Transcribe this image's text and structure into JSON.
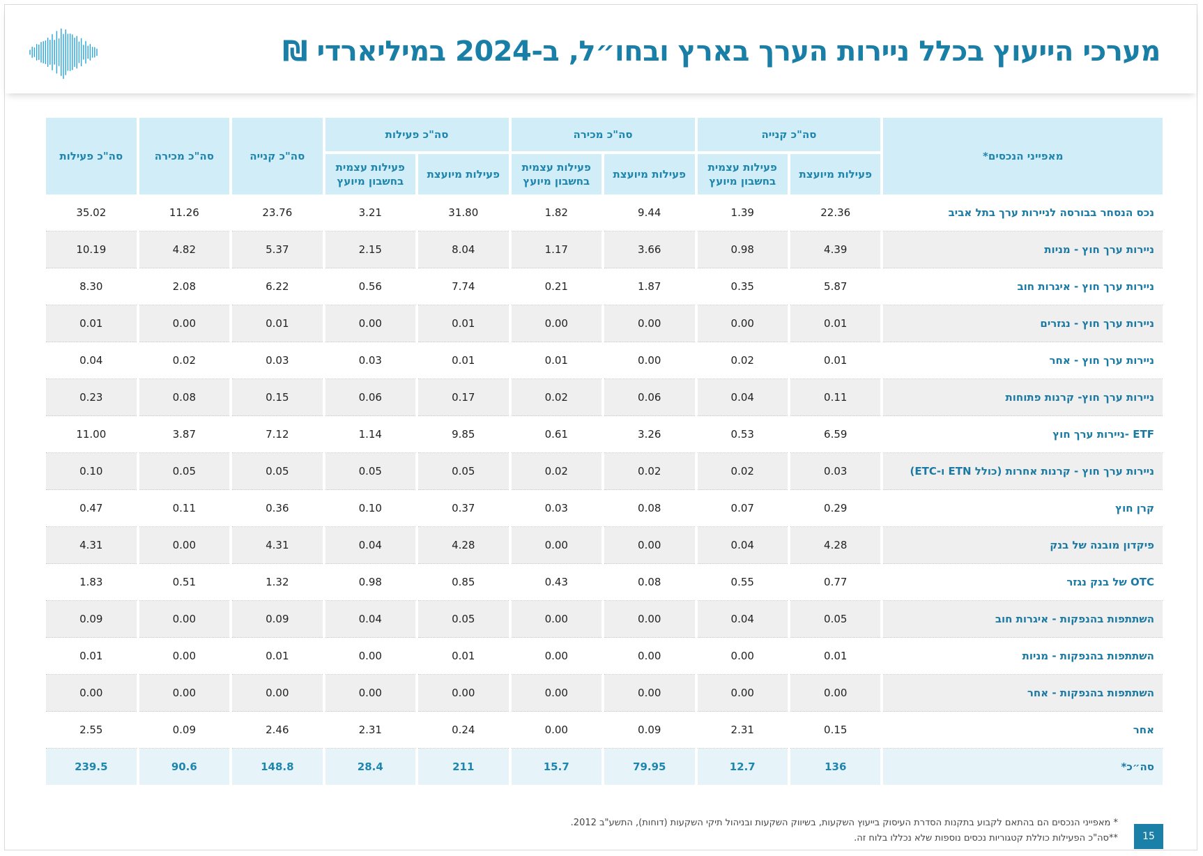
{
  "title": "מערכי הייעוץ בכלל ניירות הערך בארץ ובחו״ל, ב-2024 במיליארדי ₪",
  "colors": {
    "accent": "#1a7fa6",
    "header_bg": "#d1edf8",
    "row_alt": "#efefef",
    "total_bg": "#e6f4fa"
  },
  "icons": {
    "logo": "soundwave-logo"
  },
  "table": {
    "row_header": "מאפייני הנכסים*",
    "groups": [
      {
        "label": "סה\"כ קנייה",
        "sub": [
          "פעילות מיועצת",
          "פעילות עצמית בחשבון מיועץ"
        ]
      },
      {
        "label": "סה\"כ מכירה",
        "sub": [
          "פעילות מיועצת",
          "פעילות עצמית בחשבון מיועץ"
        ]
      },
      {
        "label": "סה\"כ פעילות",
        "sub": [
          "פעילות מיועצת",
          "פעילות עצמית בחשבון מיועץ"
        ]
      }
    ],
    "totals_headers": [
      "סה\"כ קנייה",
      "סה\"כ מכירה",
      "סה\"כ פעילות"
    ],
    "rows": [
      {
        "label": "נכס הנסחר בבורסה לניירות ערך בתל אביב",
        "values": [
          "22.36",
          "1.39",
          "9.44",
          "1.82",
          "31.80",
          "3.21",
          "23.76",
          "11.26",
          "35.02"
        ]
      },
      {
        "label": "ניירות ערך חוץ - מניות",
        "values": [
          "4.39",
          "0.98",
          "3.66",
          "1.17",
          "8.04",
          "2.15",
          "5.37",
          "4.82",
          "10.19"
        ]
      },
      {
        "label": "ניירות ערך חוץ - איגרות חוב",
        "values": [
          "5.87",
          "0.35",
          "1.87",
          "0.21",
          "7.74",
          "0.56",
          "6.22",
          "2.08",
          "8.30"
        ]
      },
      {
        "label": "ניירות ערך חוץ - נגזרים",
        "values": [
          "0.01",
          "0.00",
          "0.00",
          "0.00",
          "0.01",
          "0.00",
          "0.01",
          "0.00",
          "0.01"
        ]
      },
      {
        "label": "ניירות ערך חוץ - אחר",
        "values": [
          "0.01",
          "0.02",
          "0.00",
          "0.01",
          "0.01",
          "0.03",
          "0.03",
          "0.02",
          "0.04"
        ]
      },
      {
        "label": "ניירות ערך חוץ- קרנות פתוחות",
        "values": [
          "0.11",
          "0.04",
          "0.06",
          "0.02",
          "0.17",
          "0.06",
          "0.15",
          "0.08",
          "0.23"
        ]
      },
      {
        "label": "ETF -ניירות ערך חוץ",
        "values": [
          "6.59",
          "0.53",
          "3.26",
          "0.61",
          "9.85",
          "1.14",
          "7.12",
          "3.87",
          "11.00"
        ]
      },
      {
        "label": "ניירות ערך חוץ - קרנות אחרות (כולל ETN ו-ETC)",
        "values": [
          "0.03",
          "0.02",
          "0.02",
          "0.02",
          "0.05",
          "0.05",
          "0.05",
          "0.05",
          "0.10"
        ]
      },
      {
        "label": "קרן חוץ",
        "values": [
          "0.29",
          "0.07",
          "0.08",
          "0.03",
          "0.37",
          "0.10",
          "0.36",
          "0.11",
          "0.47"
        ]
      },
      {
        "label": "פיקדון מובנה של בנק",
        "values": [
          "4.28",
          "0.04",
          "0.00",
          "0.00",
          "4.28",
          "0.04",
          "4.31",
          "0.00",
          "4.31"
        ]
      },
      {
        "label": "OTC של בנק נגזר",
        "values": [
          "0.77",
          "0.55",
          "0.08",
          "0.43",
          "0.85",
          "0.98",
          "1.32",
          "0.51",
          "1.83"
        ]
      },
      {
        "label": "השתתפות בהנפקות - איגרות חוב",
        "values": [
          "0.05",
          "0.04",
          "0.00",
          "0.00",
          "0.05",
          "0.04",
          "0.09",
          "0.00",
          "0.09"
        ]
      },
      {
        "label": "השתתפות בהנפקות - מניות",
        "values": [
          "0.01",
          "0.00",
          "0.00",
          "0.00",
          "0.01",
          "0.00",
          "0.01",
          "0.00",
          "0.01"
        ]
      },
      {
        "label": "השתתפות בהנפקות - אחר",
        "values": [
          "0.00",
          "0.00",
          "0.00",
          "0.00",
          "0.00",
          "0.00",
          "0.00",
          "0.00",
          "0.00"
        ]
      },
      {
        "label": "אחר",
        "values": [
          "0.15",
          "2.31",
          "0.09",
          "0.00",
          "0.24",
          "2.31",
          "2.46",
          "0.09",
          "2.55"
        ]
      }
    ],
    "total": {
      "label": "סה״כ*",
      "values": [
        "136",
        "12.7",
        "79.95",
        "15.7",
        "211",
        "28.4",
        "148.8",
        "90.6",
        "239.5"
      ]
    }
  },
  "footnotes": [
    "* מאפייני הנכסים הם בהתאם לקבוע בתקנות הסדרת העיסוק בייעוץ השקעות, בשיווק השקעות ובניהול תיקי השקעות (דוחות), התשע\"ב 2012.",
    "**סה\"כ הפעילות כוללת קטגוריות נכסים נוספות שלא נכללו בלוח זה."
  ],
  "page_number": "15"
}
